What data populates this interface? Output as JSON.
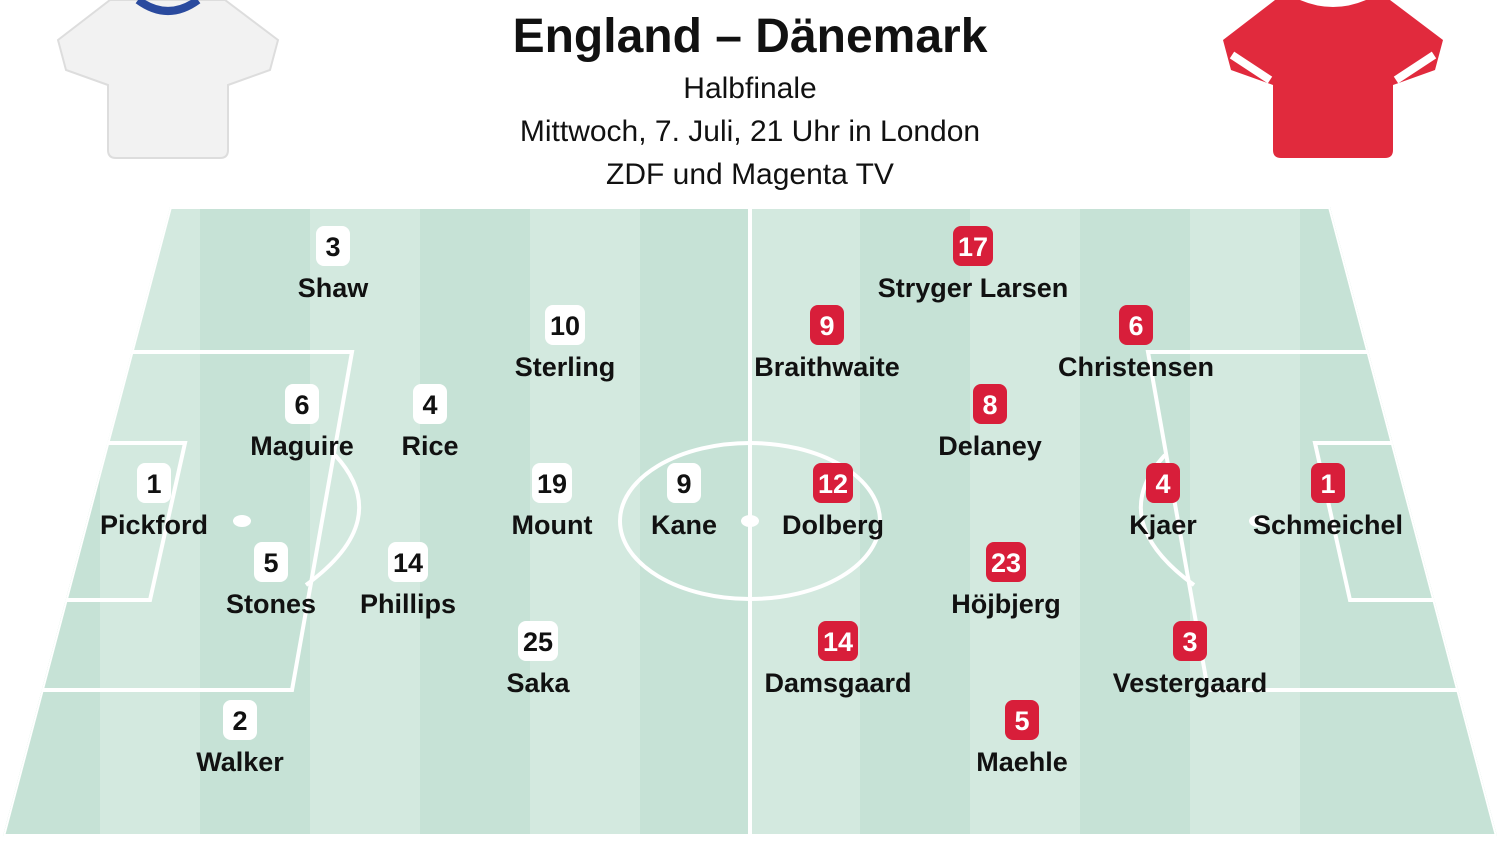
{
  "header": {
    "title": "England – Dänemark",
    "lines": [
      "Halbfinale",
      "Mittwoch, 7. Juli, 21 Uhr in London",
      "ZDF und Magenta TV"
    ]
  },
  "teams": [
    {
      "players": [
        {
          "number": 3,
          "name": "Shaw"
        },
        {
          "number": 10,
          "name": "Sterling"
        },
        {
          "number": 6,
          "name": "Maguire"
        },
        {
          "number": 4,
          "name": "Rice"
        },
        {
          "number": 1,
          "name": "Pickford"
        },
        {
          "number": 19,
          "name": "Mount"
        },
        {
          "number": 9,
          "name": "Kane"
        },
        {
          "number": 5,
          "name": "Stones"
        },
        {
          "number": 14,
          "name": "Phillips"
        },
        {
          "number": 25,
          "name": "Saka"
        },
        {
          "number": 2,
          "name": "Walker"
        }
      ]
    },
    {
      "players": [
        {
          "number": 17,
          "name": "Stryger Larsen"
        },
        {
          "number": 9,
          "name": "Braithwaite"
        },
        {
          "number": 6,
          "name": "Christensen"
        },
        {
          "number": 8,
          "name": "Delaney"
        },
        {
          "number": 12,
          "name": "Dolberg"
        },
        {
          "number": 4,
          "name": "Kjaer"
        },
        {
          "number": 1,
          "name": "Schmeichel"
        },
        {
          "number": 23,
          "name": "Höjbjerg"
        },
        {
          "number": 14,
          "name": "Damsgaard"
        },
        {
          "number": 3,
          "name": "Vestergaard"
        },
        {
          "number": 5,
          "name": "Maehle"
        }
      ]
    }
  ]
}
